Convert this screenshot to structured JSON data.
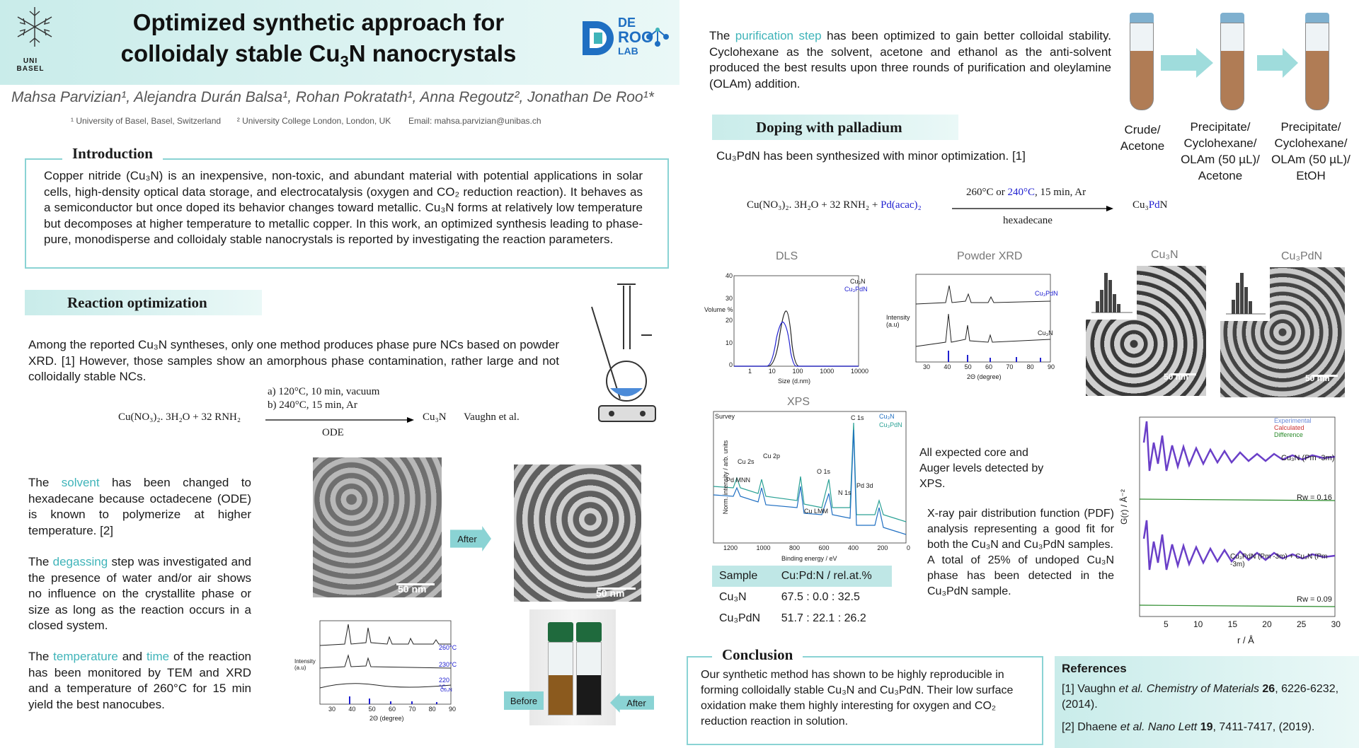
{
  "header": {
    "logo_left": "UNI BASEL",
    "title_line1": "Optimized synthetic approach for",
    "title_line2_pre": "colloidaly stable Cu",
    "title_line2_sub": "3",
    "title_line2_post": "N nanocrystals",
    "logo_right_top": "DE",
    "logo_right_mid": "ROO",
    "logo_right_bottom": "LAB",
    "authors": "Mahsa Parvizian¹, Alejandra Durán Balsa¹, Rohan Pokratath¹, Anna Regoutz², Jonathan De Roo¹*",
    "aff1": "¹ University of Basel, Basel, Switzerland",
    "aff2": "² University College London, London, UK",
    "email": "Email: mahsa.parvizian@unibas.ch"
  },
  "intro": {
    "heading": "Introduction",
    "text": "Copper nitride (Cu₃N) is an inexpensive, non-toxic, and abundant material with potential applications in solar cells, high-density optical data storage, and electrocatalysis (oxygen and CO₂ reduction reaction). It behaves as a semiconductor but once doped its behavior changes toward metallic. Cu₃N forms at relatively low temperature but decomposes at higher temperature to metallic copper. In this work, an optimized synthesis leading to phase-pure, monodisperse and colloidaly stable nanocrystals is reported  by investigating the reaction parameters."
  },
  "reaction": {
    "heading": "Reaction optimization",
    "text": "Among the reported Cu₃N syntheses, only one method produces phase pure NCs based on powder XRD. [1] However, those samples show an amorphous phase contamination, rather large and not colloidally stable NCs.",
    "eq_reactants": "Cu(NO₃)₂. 3H₂O + 32 RNH₂",
    "eq_cond_a": "a) 120°C, 10 min, vacuum",
    "eq_cond_b": "b) 240°C, 15 min, Ar",
    "eq_solvent": "ODE",
    "eq_product": "Cu₃N",
    "eq_ref": "Vaughn et al.",
    "solvent_pre": "The ",
    "solvent_kw": "solvent",
    "solvent_post": " has been changed to hexadecane because octadecene (ODE) is known to polymerize at higher temperature. [2]",
    "degas_pre": "The ",
    "degas_kw": "degassing",
    "degas_post": " step was investigated and the presence of water and/or air shows no influence on the crystallite phase or size as long as the reaction occurs in a closed system.",
    "temp_pre": "The ",
    "temp_kw": "temperature",
    "temp_mid": " and ",
    "time_kw": "time",
    "temp_post": " of the reaction has been  monitored by TEM and XRD and a temperature of 260°C for 15 min yield the best nanocubes.",
    "scale1": "50 nm",
    "scale2": "50 nm",
    "after_label": "After",
    "before_label": "Before",
    "after_label2": "After",
    "xrd_labels": [
      "260°C",
      "230°C",
      "220 °C",
      "Cu₃N"
    ],
    "xrd_ylabel": "Intensity (a.u)",
    "xrd_xlabel": "2Θ (degree)",
    "xrd_ticks": [
      "30",
      "40",
      "50",
      "60",
      "70",
      "80",
      "90"
    ]
  },
  "purification": {
    "text_pre": "The ",
    "text_kw": "purification step",
    "text_post": " has been optimized to gain  better colloidal stability. Cyclohexane as the solvent, acetone and ethanol as the anti-solvent produced the best results upon three rounds of purification and oleylamine (OLAm) addition.",
    "tube1": "Crude/ Acetone",
    "tube2": "Precipitate/ Cyclohexane/ OLAm (50 µL)/ Acetone",
    "tube3": "Precipitate/ Cyclohexane/ OLAm (50 µL)/ EtOH"
  },
  "doping": {
    "heading": "Doping with palladium",
    "text": "Cu₃PdN has been synthesized with minor optimization. [1]",
    "eq_reactants": "Cu(NO₃)₂. 3H₂O + 32 RNH₂ + ",
    "eq_pd": "Pd(acac)₂",
    "eq_cond_pre": "260°C or ",
    "eq_cond_kw": "240°C",
    "eq_cond_post": ", 15 min, Ar",
    "eq_solvent": "hexadecane",
    "eq_product_pre": "Cu₃",
    "eq_product_kw": "Pd",
    "eq_product_post": "N",
    "dls_title": "DLS",
    "dls_ylabel": "Volume %",
    "dls_xlabel": "Size (d.nm)",
    "dls_yticks": [
      "40",
      "30",
      "20",
      "10",
      "0"
    ],
    "dls_xticks": [
      "1",
      "10",
      "100",
      "1000",
      "10000"
    ],
    "dls_legend1": "Cu₃N",
    "dls_legend2": "Cu₃PdN",
    "pxrd_title": "Powder XRD",
    "pxrd_label1": "Cu₃PdN",
    "pxrd_label2": "Cu₃N",
    "pxrd_ylabel": "Intensity (a.u)",
    "pxrd_xlabel": "2Θ (degree)",
    "pxrd_ticks": [
      "30",
      "40",
      "50",
      "60",
      "70",
      "80",
      "90"
    ],
    "tem1_title": "Cu₃N",
    "tem2_title": "Cu₃PdN",
    "tem_scale1": "50 nm",
    "tem_scale2": "50 nm",
    "xps_title": "XPS",
    "xps_survey": "Survey",
    "xps_ylabel": "Norm. intensity / arb. units",
    "xps_xlabel": "Binding energy / eV",
    "xps_legend1": "Cu₃N",
    "xps_legend2": "Cu₃PdN",
    "xps_xticks": [
      "1200",
      "1000",
      "800",
      "600",
      "400",
      "200",
      "0"
    ],
    "xps_peaks": [
      "Cu 2s",
      "Cu 2p",
      "O 1s",
      "C 1s",
      "N 1s",
      "Pd 3d",
      "Pd MNN",
      "Cu LMM"
    ],
    "xps_text": "All expected core and Auger levels detected by XPS.",
    "table_head1": "Sample",
    "table_head2": "Cu:Pd:N / rel.at.%",
    "row1_sample": "Cu₃N",
    "row1_value": "67.5 : 0.0 : 32.5",
    "row2_sample": "Cu₃PdN",
    "row2_value": "51.7 : 22.1 : 26.2",
    "pdf_text": "X-ray pair distribution function (PDF) analysis representing a good fit for both the Cu₃N and Cu₃PdN samples.",
    "pdf_text2": "A total of 25% of undoped Cu₃N phase has been detected in the Cu₃PdN sample.",
    "pdf_legend": [
      "Experimental",
      "Calculated",
      "Difference"
    ],
    "pdf_label1": "Cu₃N (Pm -3m)",
    "pdf_label2": "Cu₃PdN (Pm -3m) + Cu₃N (Pm -3m)",
    "pdf_rw1": "Rw = 0.16",
    "pdf_rw2": "Rw = 0.09",
    "pdf_ylabel": "G(r) / Å⁻²",
    "pdf_xlabel": "r / Å",
    "pdf_xticks": [
      "5",
      "10",
      "15",
      "20",
      "25",
      "30"
    ]
  },
  "conclusion": {
    "heading": "Conclusion",
    "text": "Our synthetic method has shown to be highly reproducible in forming colloidally stable Cu₃N and Cu₃PdN. Their low surface oxidation make them highly interesting for oxygen and CO₂ reduction reaction in solution."
  },
  "references": {
    "heading": "References",
    "ref1_pre": "[1] Vaughn ",
    "ref1_it": " et al. Chemistry of Materials ",
    "ref1_bold": "26",
    "ref1_post": ", 6226-6232, (2014).",
    "ref2_pre": "[2] Dhaene ",
    "ref2_it": "et al. Nano Lett ",
    "ref2_bold": "19",
    "ref2_post": ", 7411-7417, (2019)."
  },
  "colors": {
    "accent": "#3fb4b9",
    "blue": "#2020d0",
    "header_bg": "#d4efee"
  }
}
